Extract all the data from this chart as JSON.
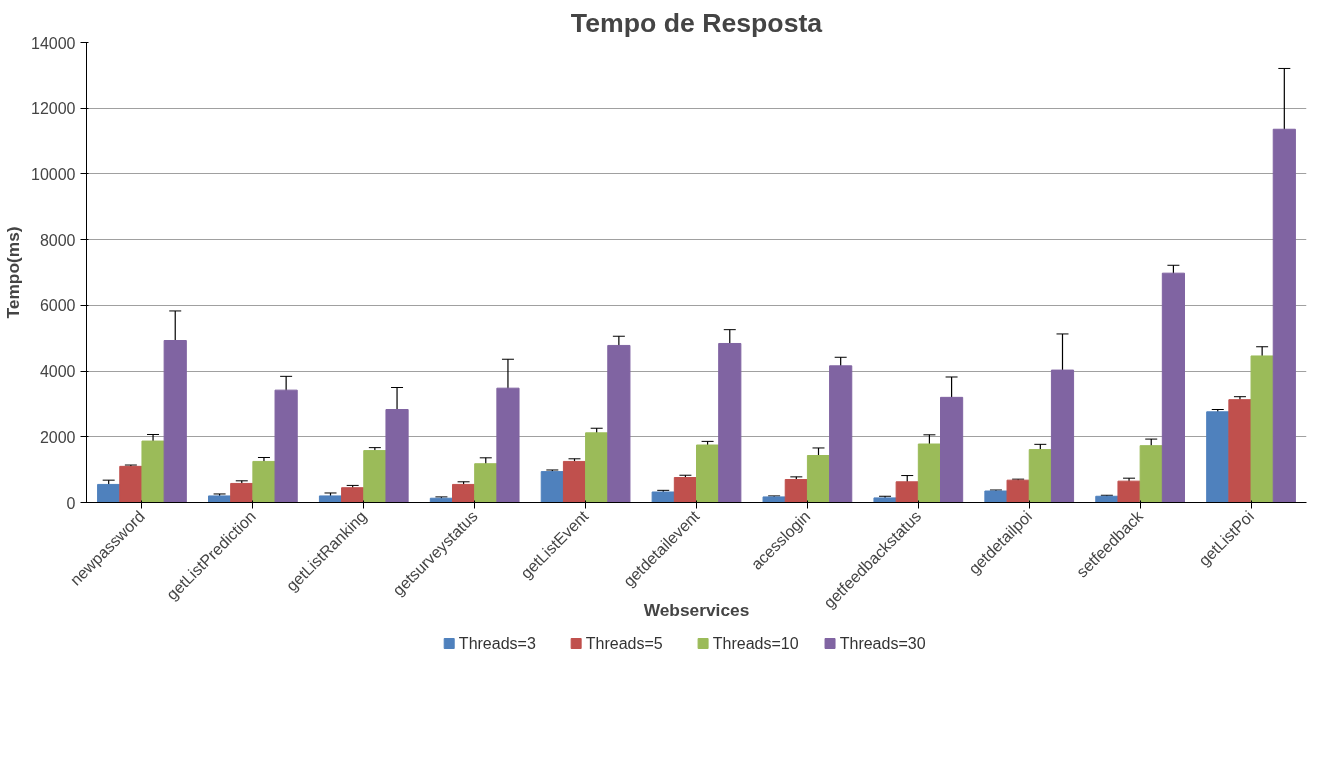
{
  "chart_data": {
    "type": "bar",
    "title": "Tempo de Resposta",
    "xlabel": "Webservices",
    "ylabel": "Tempo(ms)",
    "categories": [
      "newpassword",
      "getListPrediction",
      "getListRanking",
      "getsurveystatus",
      "getListEvent",
      "getdetailevent",
      "acesslogin",
      "getfeedbackstatus",
      "getdetailpoi",
      "setfeedback",
      "getListPoi"
    ],
    "series": [
      {
        "name": "Threads=3",
        "color": "#4f81bd",
        "values": [
          550,
          200,
          200,
          130,
          940,
          320,
          170,
          140,
          350,
          190,
          2760
        ],
        "errors": [
          130,
          60,
          90,
          40,
          50,
          50,
          30,
          50,
          30,
          30,
          70
        ]
      },
      {
        "name": "Threads=5",
        "color": "#c0504d",
        "values": [
          1100,
          580,
          450,
          550,
          1250,
          760,
          700,
          630,
          680,
          650,
          3130
        ],
        "errors": [
          40,
          80,
          70,
          80,
          80,
          70,
          80,
          190,
          30,
          90,
          90
        ]
      },
      {
        "name": "Threads=10",
        "color": "#9bbb59",
        "values": [
          1870,
          1250,
          1580,
          1180,
          2120,
          1750,
          1430,
          1780,
          1610,
          1730,
          4460
        ],
        "errors": [
          200,
          120,
          90,
          180,
          140,
          110,
          230,
          280,
          160,
          200,
          280
        ]
      },
      {
        "name": "Threads=30",
        "color": "#8064a2",
        "values": [
          4930,
          3420,
          2830,
          3480,
          4780,
          4840,
          4160,
          3200,
          4030,
          6980,
          11360
        ],
        "errors": [
          900,
          420,
          670,
          880,
          280,
          420,
          260,
          620,
          1100,
          240,
          1850
        ]
      }
    ],
    "ylim": [
      0,
      14000
    ],
    "yticks": [
      0,
      2000,
      4000,
      6000,
      8000,
      10000,
      12000,
      14000
    ],
    "grid": "y",
    "legend": "bottom"
  }
}
